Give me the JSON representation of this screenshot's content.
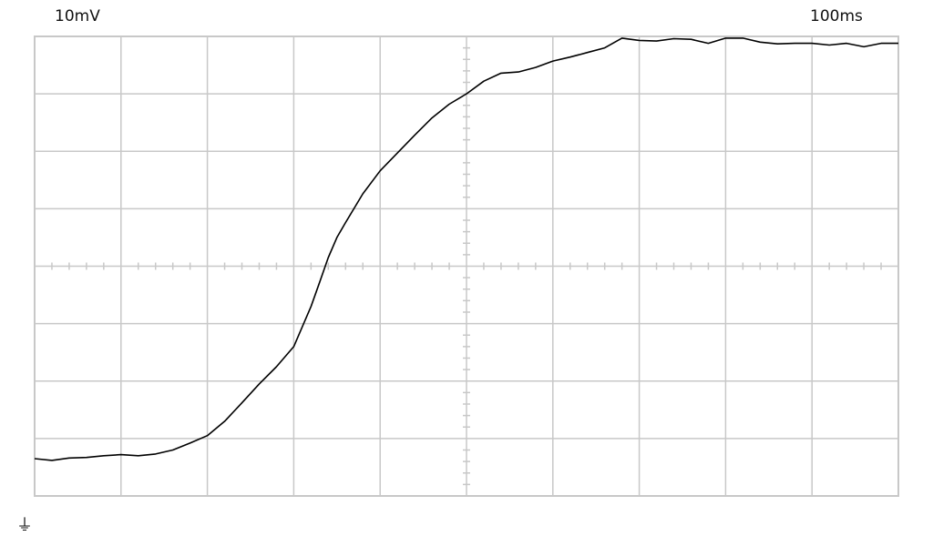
{
  "header": {
    "volts_per_div": "10mV",
    "time_per_div": "100ms"
  },
  "ground_marker": "⏚",
  "colors": {
    "grid": "#c8c8c8",
    "frame": "#c8c8c8",
    "trace": "#000000",
    "background": "#ffffff"
  },
  "chart_data": {
    "type": "line",
    "x_divisions": 10,
    "y_divisions": 8,
    "grid": true,
    "x_unit_per_div": "100ms",
    "y_unit_per_div": "10mV",
    "xlim": [
      0,
      10
    ],
    "ylim": [
      0,
      8
    ],
    "series": [
      {
        "x": [
          0,
          0.2,
          0.4,
          0.6,
          0.8,
          1.0,
          1.2,
          1.4,
          1.6,
          1.8,
          2.0,
          2.2,
          2.4,
          2.6,
          2.8,
          3.0,
          3.1,
          3.2,
          3.3,
          3.4,
          3.5,
          3.6,
          3.8,
          4.0,
          4.2,
          4.4,
          4.6,
          4.8,
          5.0,
          5.2,
          5.4,
          5.6,
          5.8,
          6.0,
          6.2,
          6.4,
          6.6,
          6.8,
          7.0,
          7.2,
          7.4,
          7.6,
          7.8,
          8.0,
          8.2,
          8.4,
          8.6,
          8.8,
          9.0,
          9.2,
          9.4,
          9.6,
          9.8,
          10.0
        ],
        "y": [
          0.65,
          0.62,
          0.66,
          0.67,
          0.7,
          0.72,
          0.7,
          0.73,
          0.8,
          0.92,
          1.05,
          1.3,
          1.62,
          1.95,
          2.25,
          2.6,
          2.95,
          3.3,
          3.72,
          4.15,
          4.5,
          4.76,
          5.26,
          5.66,
          5.97,
          6.28,
          6.58,
          6.82,
          7.0,
          7.22,
          7.36,
          7.38,
          7.46,
          7.57,
          7.64,
          7.72,
          7.8,
          7.97,
          7.93,
          7.92,
          7.96,
          7.95,
          7.88,
          7.97,
          7.97,
          7.9,
          7.87,
          7.88,
          7.88,
          7.85,
          7.88,
          7.82,
          7.88,
          7.88
        ]
      }
    ]
  }
}
